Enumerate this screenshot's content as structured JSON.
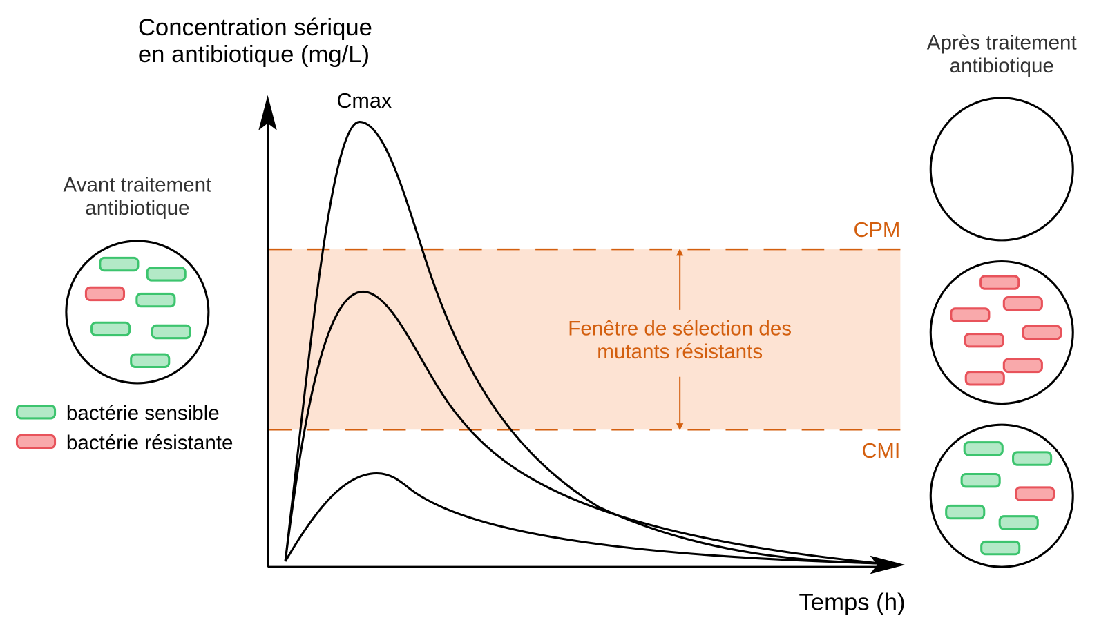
{
  "y_axis_label": [
    "Concentration sérique",
    "en antibiotique (mg/L)"
  ],
  "x_axis_label": "Temps (h)",
  "peak_label": "Cmax",
  "upper_threshold": "CPM",
  "lower_threshold": "CMI",
  "window_label": [
    "Fenêtre de sélection des",
    "mutants résistants"
  ],
  "before_label": [
    "Avant traitement",
    "antibiotique"
  ],
  "after_label": [
    "Après traitement",
    "antibiotique"
  ],
  "legend": [
    "bactérie sensible",
    "bactérie résistante"
  ]
}
